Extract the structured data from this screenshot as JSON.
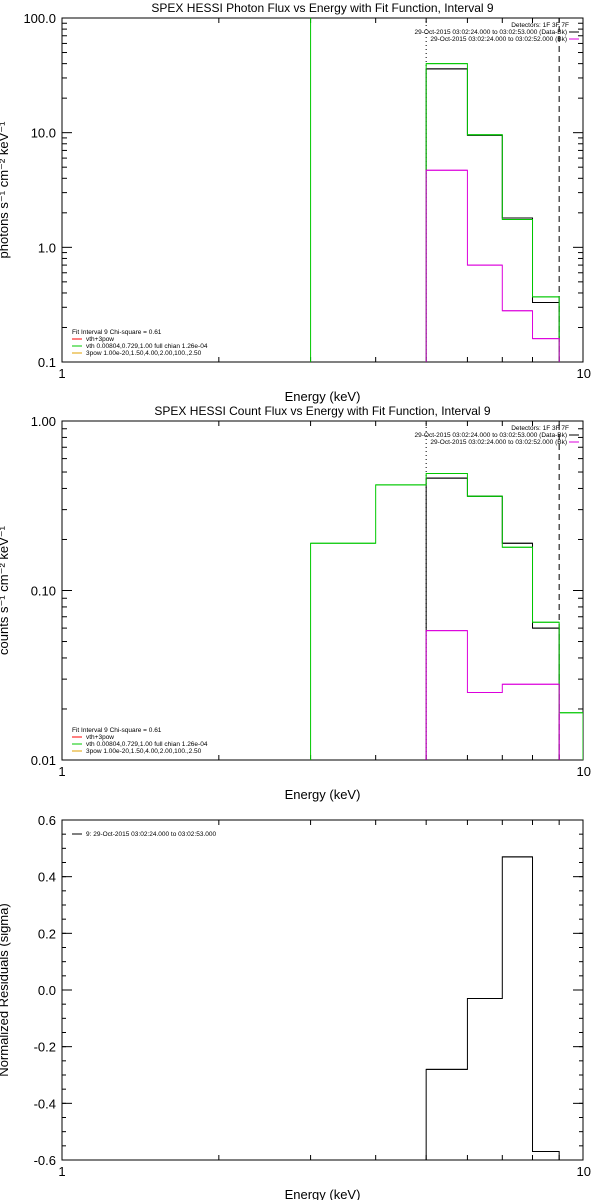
{
  "colors": {
    "black": "#000000",
    "green": "#00c800",
    "magenta": "#dc00dc",
    "red": "#ff0000",
    "orange": "#e0a000"
  },
  "chart_data": [
    {
      "type": "line",
      "style": "step",
      "title": "SPEX HESSI Photon Flux vs Energy with Fit Function, Interval 9",
      "xlabel": "Energy (keV)",
      "ylabel": "photons s⁻¹ cm⁻² keV⁻¹",
      "xscale": "log",
      "yscale": "log",
      "xlim": [
        1,
        10
      ],
      "ylim": [
        0.1,
        100
      ],
      "xticks": [
        1,
        10
      ],
      "xtick_labels": [
        "1",
        "10"
      ],
      "yticks": [
        0.1,
        1,
        10,
        100
      ],
      "ytick_labels": [
        "0.1",
        "1.0",
        "10.0",
        "100.0"
      ],
      "legend": {
        "placement": "top-right",
        "header": "Detectors: 1F 3F 7F",
        "entries": [
          {
            "label": "29-Oct-2015 03:02:24.000 to 03:02:53.000 (Data-Bk)",
            "color": "#000000"
          },
          {
            "label": "29-Oct-2015 03:02:24.000 to 03:02:52.000 (Bk)",
            "color": "#dc00dc"
          }
        ]
      },
      "fit_legend": {
        "placement": "bottom-left",
        "header": "Fit Interval 9   Chi-square = 0.61",
        "entries": [
          {
            "label": "vth+3pow",
            "color": "#ff0000"
          },
          {
            "label": "vth 0.00804,0.729,1.00  full chian 1.26e-04",
            "color": "#00c800"
          },
          {
            "label": "3pow 1.00e-20,1.50,4.00,2.00,100.,2.50",
            "color": "#e0a000"
          }
        ]
      },
      "vlines": [
        {
          "x": 3.0,
          "color": "#00c800",
          "dash": "solid",
          "ymin": 0.1,
          "ymax": 100
        },
        {
          "x": 5.0,
          "color": "#000000",
          "dash": "dotted",
          "ymin": 0.1,
          "ymax": 100
        },
        {
          "x": 9.0,
          "color": "#000000",
          "dash": "dashed",
          "ymin": 0.1,
          "ymax": 100
        }
      ],
      "series": [
        {
          "name": "Data-Bk",
          "color": "#000000",
          "edges": [
            5,
            6,
            7,
            8,
            9
          ],
          "values": [
            36,
            9.5,
            1.8,
            0.33
          ],
          "drop_to_axis": true
        },
        {
          "name": "Fit",
          "color": "#00c800",
          "edges": [
            5,
            6,
            7,
            8,
            9
          ],
          "values": [
            40,
            9.6,
            1.75,
            0.37
          ],
          "drop_to_axis": true
        },
        {
          "name": "Bk",
          "color": "#dc00dc",
          "edges": [
            5,
            6,
            7,
            8,
            9
          ],
          "values": [
            4.7,
            0.7,
            0.28,
            0.16
          ],
          "drop_to_axis": true
        }
      ]
    },
    {
      "type": "line",
      "style": "step",
      "title": "SPEX HESSI Count Flux vs Energy with Fit Function, Interval 9",
      "xlabel": "Energy (keV)",
      "ylabel": "counts s⁻¹ cm⁻² keV⁻¹",
      "xscale": "log",
      "yscale": "log",
      "xlim": [
        1,
        10
      ],
      "ylim": [
        0.01,
        1
      ],
      "xticks": [
        1,
        10
      ],
      "xtick_labels": [
        "1",
        "10"
      ],
      "yticks": [
        0.01,
        0.1,
        1
      ],
      "ytick_labels": [
        "0.01",
        "0.10",
        "1.00"
      ],
      "legend": {
        "placement": "top-right",
        "header": "Detectors: 1F 3F 7F",
        "entries": [
          {
            "label": "29-Oct-2015 03:02:24.000 to 03:02:53.000 (Data-Bk)",
            "color": "#000000"
          },
          {
            "label": "29-Oct-2015 03:02:24.000 to 03:02:52.000 (Bk)",
            "color": "#dc00dc"
          }
        ]
      },
      "fit_legend": {
        "placement": "bottom-left",
        "header": "Fit Interval 9   Chi-square = 0.61",
        "entries": [
          {
            "label": "vth+3pow",
            "color": "#ff0000"
          },
          {
            "label": "vth 0.00804,0.729,1.00  full chian 1.26e-04",
            "color": "#00c800"
          },
          {
            "label": "3pow 1.00e-20,1.50,4.00,2.00,100.,2.50",
            "color": "#e0a000"
          }
        ]
      },
      "vlines": [
        {
          "x": 5.0,
          "color": "#000000",
          "dash": "dotted",
          "ymin": 0.01,
          "ymax": 1
        },
        {
          "x": 9.0,
          "color": "#000000",
          "dash": "dashed",
          "ymin": 0.01,
          "ymax": 1
        }
      ],
      "series": [
        {
          "name": "Data-Bk",
          "color": "#000000",
          "edges": [
            5,
            6,
            7,
            8,
            9
          ],
          "values": [
            0.46,
            0.36,
            0.19,
            0.06
          ],
          "drop_to_axis": true
        },
        {
          "name": "Fit",
          "color": "#00c800",
          "edges": [
            3,
            4,
            5,
            6,
            7,
            8,
            9,
            10
          ],
          "values": [
            0.19,
            0.42,
            0.49,
            0.36,
            0.18,
            0.065,
            0.019
          ],
          "drop_to_axis": true
        },
        {
          "name": "Bk",
          "color": "#dc00dc",
          "edges": [
            5,
            6,
            7,
            8,
            9
          ],
          "values": [
            0.058,
            0.025,
            0.028,
            0.028
          ],
          "drop_to_axis": true
        }
      ]
    },
    {
      "type": "line",
      "style": "step",
      "title": "",
      "xlabel": "Energy (keV)",
      "ylabel": "Normalized Residuals (sigma)",
      "xscale": "log",
      "yscale": "linear",
      "xlim": [
        1,
        10
      ],
      "ylim": [
        -0.6,
        0.6
      ],
      "xticks": [
        1,
        10
      ],
      "xtick_labels": [
        "1",
        "10"
      ],
      "yticks": [
        -0.6,
        -0.4,
        -0.2,
        0,
        0.2,
        0.4,
        0.6
      ],
      "ytick_labels": [
        "-0.6",
        "-0.4",
        "-0.2",
        "0.0",
        "0.2",
        "0.4",
        "0.6"
      ],
      "legend": {
        "placement": "top-left",
        "header": "",
        "entries": [
          {
            "label": "9: 29-Oct-2015 03:02:24.000 to 03:02:53.000",
            "color": "#000000"
          }
        ]
      },
      "vlines": [],
      "series": [
        {
          "name": "Residuals",
          "color": "#000000",
          "edges": [
            5,
            6,
            7,
            8,
            9
          ],
          "values": [
            -0.28,
            -0.03,
            0.47,
            -0.57
          ],
          "drop_to_axis": true
        }
      ]
    }
  ]
}
